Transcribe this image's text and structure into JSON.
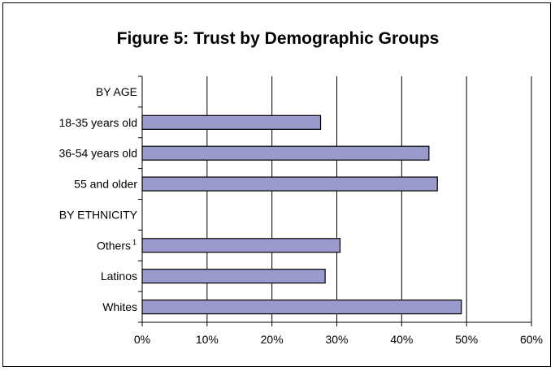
{
  "chart_data": {
    "type": "bar",
    "orientation": "horizontal",
    "title": "Figure 5: Trust by Demographic Groups",
    "categories": [
      {
        "label": "BY AGE",
        "value": null,
        "header": true
      },
      {
        "label": "18-35 years old",
        "value": 27.5
      },
      {
        "label": "36-54 years old",
        "value": 44.2
      },
      {
        "label": "55 and older",
        "value": 45.5
      },
      {
        "label": "BY ETHNICITY",
        "value": null,
        "header": true
      },
      {
        "label": "Others",
        "footnote": "1",
        "value": 30.5
      },
      {
        "label": "Latinos",
        "value": 28.2
      },
      {
        "label": "Whites",
        "value": 49.2
      }
    ],
    "xlim": [
      0,
      60
    ],
    "xticks": [
      "0%",
      "10%",
      "20%",
      "30%",
      "40%",
      "50%",
      "60%"
    ],
    "xlabel": "",
    "ylabel": "",
    "grid": "vertical",
    "colors": {
      "bar_fill": "#9a9acc",
      "bar_stroke": "#000000",
      "grid": "#000000"
    }
  }
}
